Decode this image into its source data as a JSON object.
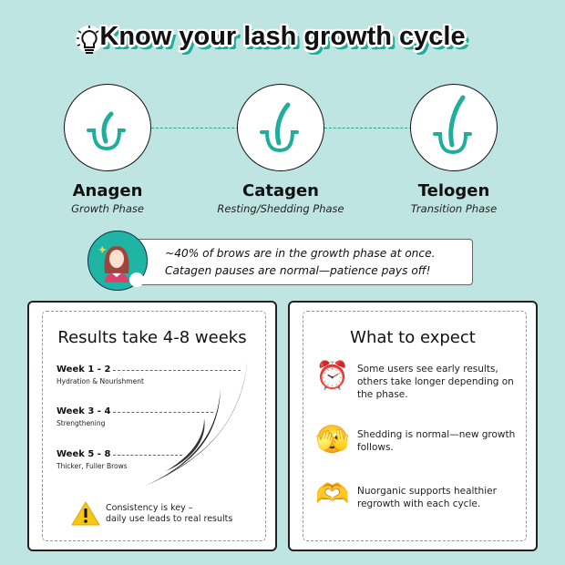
{
  "title": "Know your lash growth cycle",
  "accent": "#1fae9c",
  "background": "#bfe5e3",
  "phases": [
    {
      "name": "Anagen",
      "subtitle": "Growth Phase"
    },
    {
      "name": "Catagen",
      "subtitle": "Resting/Shedding Phase"
    },
    {
      "name": "Telogen",
      "subtitle": "Transition Phase"
    }
  ],
  "banner": {
    "line1": "~40% of brows are in the growth phase at once.",
    "line2": "Catagen pauses are normal—patience pays off!"
  },
  "results": {
    "title": "Results take 4-8 weeks",
    "weeks": [
      {
        "label": "Week 1 - 2",
        "desc": "Hydration & Nourishment"
      },
      {
        "label": "Week 3 - 4",
        "desc": "Strengthening"
      },
      {
        "label": "Week 5 - 8",
        "desc": "Thicker, Fuller Brows"
      }
    ],
    "note_line1": "Consistency is key –",
    "note_line2": "daily use leads to real results"
  },
  "expect": {
    "title": "What to expect",
    "items": [
      {
        "icon": "alarm-clock-icon",
        "glyph": "⏰",
        "text": "Some users see early results, others take longer depending on the phase."
      },
      {
        "icon": "peeking-face-icon",
        "glyph": "🫣",
        "text": "Shedding is normal—new growth follows."
      },
      {
        "icon": "heart-hands-icon",
        "glyph": "🫶",
        "text": "Nuorganic supports healthier regrowth with each cycle."
      }
    ]
  }
}
